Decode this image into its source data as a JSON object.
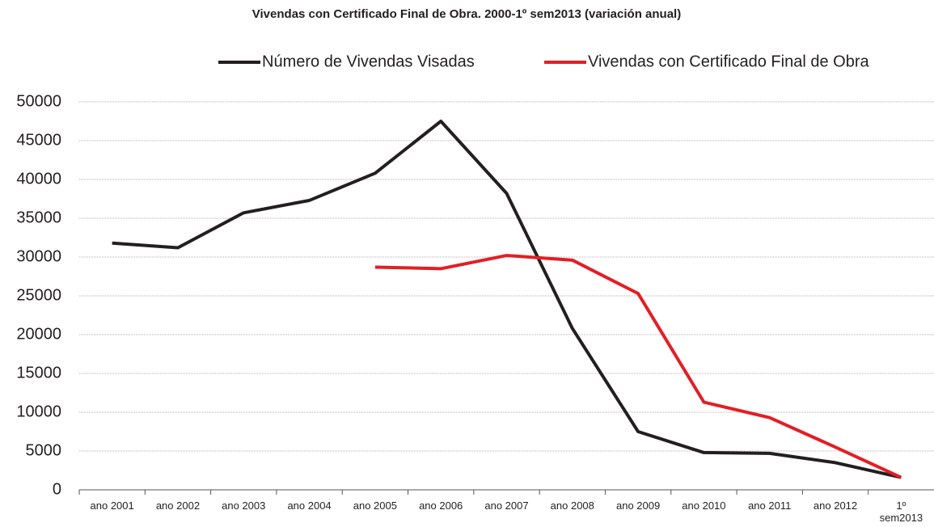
{
  "chart_data": {
    "type": "line",
    "title": "Vivendas con Certificado Final de Obra. 2000-1º sem2013 (variación anual)",
    "categories": [
      "ano 2001",
      "ano 2002",
      "ano 2003",
      "ano 2004",
      "ano 2005",
      "ano 2006",
      "ano 2007",
      "ano 2008",
      "ano 2009",
      "ano 2010",
      "ano 2011",
      "ano 2012",
      "1º sem2013"
    ],
    "series": [
      {
        "name": "Número de Vivendas Visadas",
        "color": "#231f20",
        "values": [
          31800,
          31200,
          35700,
          37300,
          40800,
          47500,
          38200,
          20800,
          7500,
          4800,
          4700,
          3500,
          1600
        ]
      },
      {
        "name": "Vivendas con Certificado Final de Obra",
        "color": "#e31e25",
        "values": [
          null,
          null,
          null,
          null,
          28700,
          28500,
          30200,
          29600,
          25300,
          11300,
          9300,
          5500,
          1600
        ]
      }
    ],
    "ylim": [
      0,
      50000
    ],
    "yticks": [
      0,
      5000,
      10000,
      15000,
      20000,
      25000,
      30000,
      35000,
      40000,
      45000,
      50000
    ],
    "grid": true,
    "legend": "top"
  }
}
